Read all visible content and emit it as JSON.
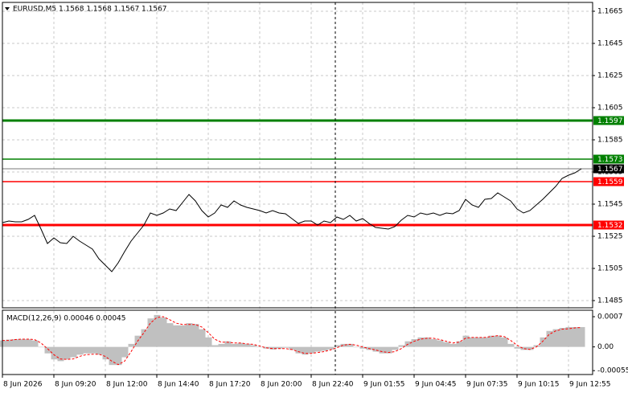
{
  "chart_data": [
    {
      "type": "line",
      "title": "EURUSD,M5  1.1568 1.1568 1.1567 1.1567",
      "categories": [
        "8 Jun 2026",
        null,
        null,
        null,
        null,
        null,
        null,
        null,
        "8 Jun 09:20",
        null,
        null,
        null,
        null,
        null,
        null,
        null,
        "8 Jun 12:00",
        null,
        null,
        null,
        null,
        null,
        null,
        null,
        "8 Jun 14:40",
        null,
        null,
        null,
        null,
        null,
        null,
        null,
        "8 Jun 17:20",
        null,
        null,
        null,
        null,
        null,
        null,
        null,
        "8 Jun 20:00",
        null,
        null,
        null,
        null,
        null,
        null,
        null,
        "8 Jun 22:40",
        null,
        null,
        null,
        null,
        null,
        null,
        null,
        "9 Jun 01:55",
        null,
        null,
        null,
        null,
        null,
        null,
        null,
        "9 Jun 04:45",
        null,
        null,
        null,
        null,
        null,
        null,
        null,
        "9 Jun 07:35",
        null,
        null,
        null,
        null,
        null,
        null,
        null,
        "9 Jun 10:15",
        null,
        null,
        null,
        null,
        null,
        null,
        null,
        "9 Jun 12:55",
        null,
        null
      ],
      "values": [
        1.15335,
        1.15345,
        1.1534,
        1.1534,
        1.15355,
        1.1538,
        1.15295,
        1.15205,
        1.1524,
        1.1521,
        1.15205,
        1.1525,
        1.1522,
        1.15195,
        1.1517,
        1.1511,
        1.1507,
        1.1503,
        1.15085,
        1.15155,
        1.1522,
        1.1527,
        1.1532,
        1.15395,
        1.1538,
        1.15395,
        1.1542,
        1.1541,
        1.1546,
        1.1551,
        1.1547,
        1.1541,
        1.1537,
        1.15395,
        1.15445,
        1.1543,
        1.1547,
        1.15445,
        1.1543,
        1.1542,
        1.1541,
        1.15395,
        1.1541,
        1.15395,
        1.1539,
        1.1536,
        1.1533,
        1.15345,
        1.15345,
        1.1532,
        1.15345,
        1.15335,
        1.1537,
        1.15355,
        1.1538,
        1.15345,
        1.1536,
        1.1533,
        1.15305,
        1.153,
        1.15295,
        1.1531,
        1.1535,
        1.1538,
        1.1537,
        1.15395,
        1.15385,
        1.15395,
        1.1538,
        1.15395,
        1.1539,
        1.1541,
        1.1548,
        1.15445,
        1.1543,
        1.1548,
        1.15485,
        1.1552,
        1.15495,
        1.1547,
        1.1542,
        1.15395,
        1.1541,
        1.15445,
        1.1548,
        1.1552,
        1.1556,
        1.1561,
        1.1563,
        1.15645,
        1.1567
      ],
      "color": "#000000",
      "ylim": [
        1.14805,
        1.16705
      ],
      "yticks": [
        1.1485,
        1.1505,
        1.1525,
        1.1545,
        1.1565,
        1.1585,
        1.1605,
        1.1625,
        1.1645,
        1.1665
      ],
      "grid": true,
      "levels": [
        {
          "value": 1.1597,
          "color": "#008000",
          "style": "thick"
        },
        {
          "value": 1.1573,
          "color": "#008000",
          "style": "thin"
        },
        {
          "value": 1.1567,
          "color": "#000000",
          "style": "faint"
        },
        {
          "value": 1.1559,
          "color": "#ff0000",
          "style": "thin"
        },
        {
          "value": 1.1532,
          "color": "#ff0000",
          "style": "thick"
        }
      ]
    },
    {
      "type": "macd",
      "title": "MACD(12,26,9) 0.00046 0.00045",
      "values": [
        0.00015,
        0.00017,
        0.00018,
        0.00018,
        0.00018,
        0.00015,
        0,
        -0.00015,
        -0.00029,
        -0.00033,
        -0.00029,
        -0.00024,
        -0.00018,
        -0.00015,
        -0.00015,
        -0.00018,
        -0.00029,
        -0.00042,
        -0.00042,
        -0.00024,
        7e-05,
        0.00026,
        0.00041,
        0.00066,
        0.00074,
        0.00068,
        0.00055,
        0.0005,
        0.0005,
        0.00055,
        0.00053,
        0.00041,
        0.00022,
        4e-05,
        7e-05,
        0.00013,
        7e-05,
        9e-05,
        7e-05,
        4e-05,
        0,
        -4e-05,
        -6e-05,
        -4e-05,
        -2e-05,
        -7e-05,
        -0.00015,
        -0.00018,
        -0.00015,
        -0.00011,
        -9e-05,
        -6e-05,
        4e-05,
        7e-05,
        7e-05,
        0,
        -4e-05,
        -7e-05,
        -0.00011,
        -0.00015,
        -0.00015,
        -7e-05,
        4e-05,
        0.00013,
        0.00018,
        0.00022,
        0.00022,
        0.00018,
        0.00015,
        0.00011,
        7e-05,
        0.00013,
        0.00026,
        0.00022,
        0.00022,
        0.00022,
        0.00026,
        0.00026,
        0.00022,
        7e-05,
        -4e-05,
        -7e-05,
        -7e-05,
        4e-05,
        0.00022,
        0.00037,
        0.00041,
        0.00044,
        0.00046,
        0.00046,
        0.00046
      ],
      "color": "#c0c0c0",
      "signal": {
        "color": "#ff0000",
        "values": [
          0.00015,
          0.00015,
          0.00017,
          0.00018,
          0.00018,
          0.00017,
          9e-05,
          -4e-05,
          -0.00018,
          -0.00028,
          -0.00029,
          -0.00028,
          -0.00022,
          -0.00018,
          -0.00017,
          -0.00017,
          -0.00022,
          -0.00033,
          -0.00041,
          -0.00033,
          -0.00011,
          0.00013,
          0.00033,
          0.00055,
          0.00068,
          0.0007,
          0.00063,
          0.00055,
          0.00052,
          0.00052,
          0.00052,
          0.00046,
          0.00033,
          0.00018,
          0.00011,
          0.00011,
          9e-05,
          9e-05,
          7e-05,
          6e-05,
          2e-05,
          -2e-05,
          -4e-05,
          -4e-05,
          -4e-05,
          -6e-05,
          -0.00011,
          -0.00015,
          -0.00015,
          -0.00013,
          -0.00011,
          -7e-05,
          -2e-05,
          4e-05,
          6e-05,
          4e-05,
          0,
          -4e-05,
          -7e-05,
          -0.00011,
          -0.00013,
          -0.00011,
          -4e-05,
          6e-05,
          0.00013,
          0.00018,
          0.0002,
          0.0002,
          0.00017,
          0.00013,
          9e-05,
          0.00011,
          0.0002,
          0.00022,
          0.00022,
          0.00022,
          0.00024,
          0.00026,
          0.00024,
          0.00015,
          4e-05,
          -4e-05,
          -6e-05,
          0,
          0.00013,
          0.00029,
          0.00037,
          0.00041,
          0.00042,
          0.00044,
          0.00045
        ]
      },
      "ylim": [
        -0.00064,
        0.00085
      ],
      "yticks": [
        0.0007,
        {
          "value": 0,
          "label": "0.00"
        },
        -0.00055
      ]
    }
  ]
}
